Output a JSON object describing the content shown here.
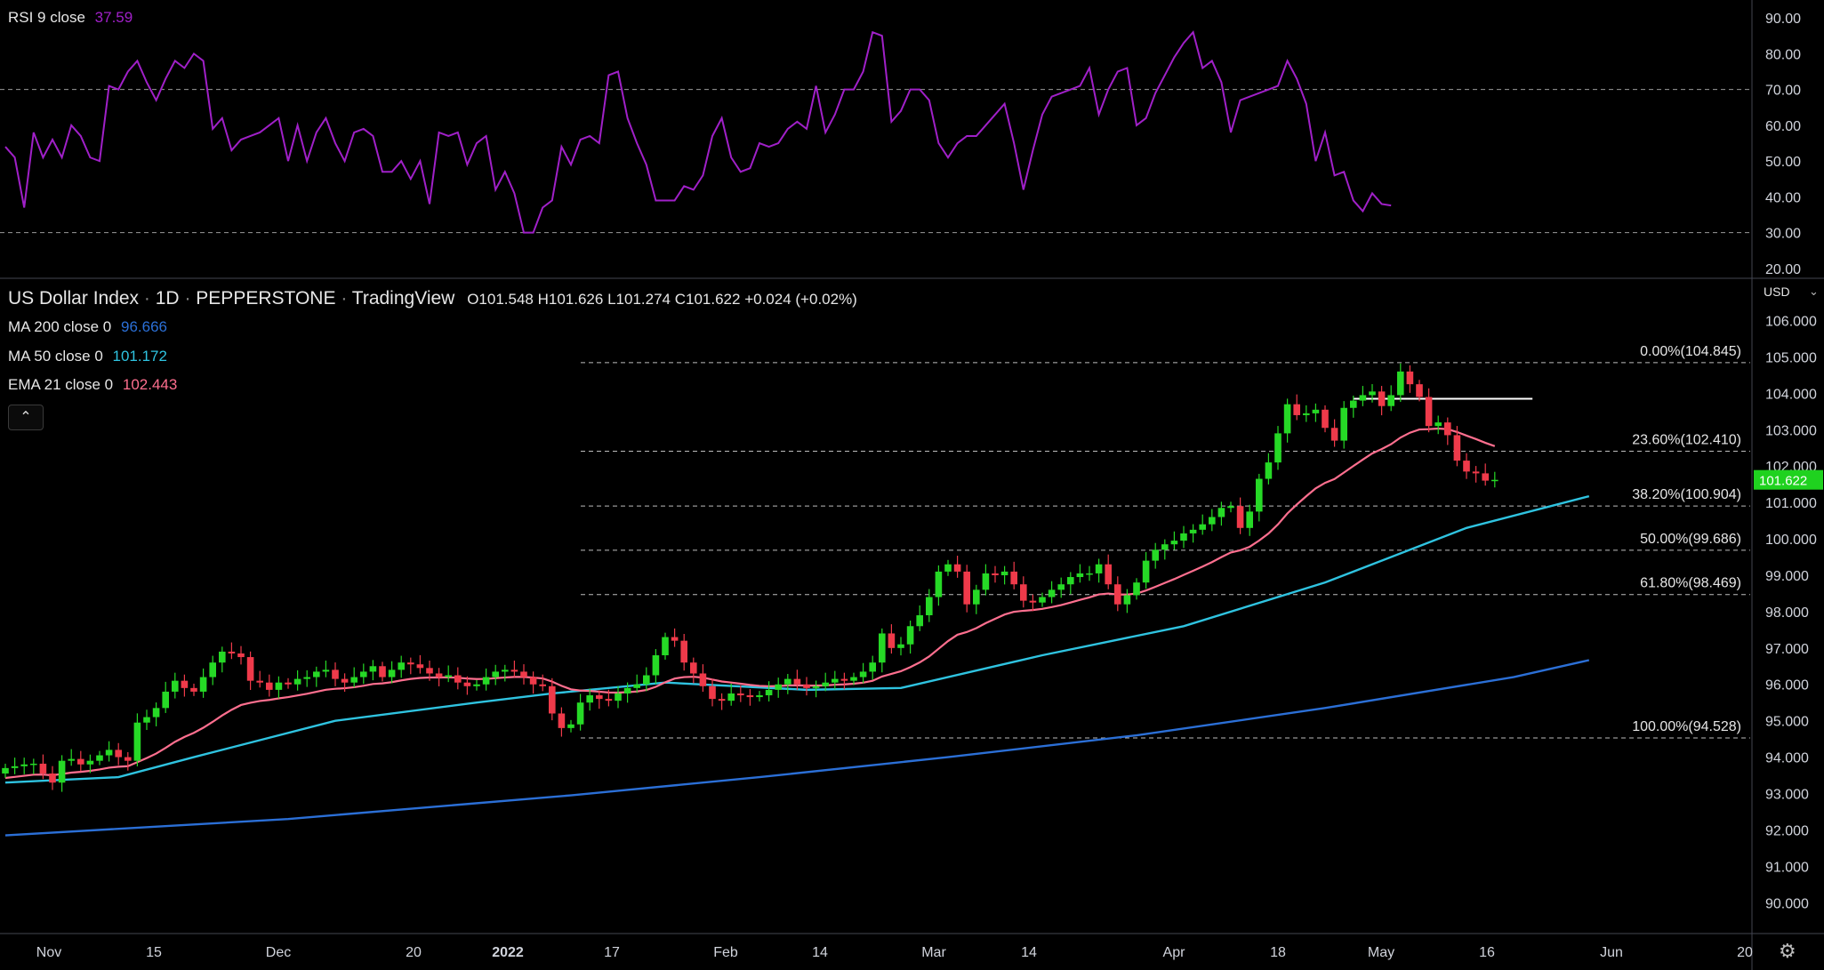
{
  "colors": {
    "background": "#000000",
    "grid_text": "#d1d4dc",
    "axis_line": "#434651",
    "up": "#26d926",
    "down": "#ef3a4a",
    "rsi": "#a020c8",
    "ma200": "#2b6fd6",
    "ma50": "#2fc3e0",
    "ema21": "#ff6f8f",
    "last_price_bg": "#1fd21f"
  },
  "rsi_panel": {
    "title": "RSI 9 close",
    "value": "37.59",
    "axis_ticks": [
      "90.00",
      "80.00",
      "70.00",
      "60.00",
      "50.00",
      "40.00",
      "30.00",
      "20.00"
    ]
  },
  "header": {
    "symbol": "US Dollar Index",
    "sep1": "·",
    "interval": "1D",
    "sep2": "·",
    "exchange": "PEPPERSTONE",
    "sep3": "·",
    "source": "TradingView",
    "o_label": "O",
    "o_value": "101.548",
    "h_label": "H",
    "h_value": "101.626",
    "l_label": "L",
    "l_value": "101.274",
    "c_label": "C",
    "c_value": "101.622",
    "change": "+0.024 (+0.02%)"
  },
  "indicators": {
    "ma200": {
      "label": "MA 200 close 0",
      "value": "96.666"
    },
    "ma50": {
      "label": "MA 50 close 0",
      "value": "101.172"
    },
    "ema21": {
      "label": "EMA 21 close 0",
      "value": "102.443"
    }
  },
  "collapse_icon": "chevron-up-icon",
  "collapse_glyph": "⌃",
  "currency": {
    "label": "USD",
    "caret": "⌄"
  },
  "settings_icon": "gear-icon",
  "settings_glyph": "⚙",
  "price_axis_ticks": [
    "106.000",
    "105.000",
    "104.000",
    "103.000",
    "102.000",
    "101.000",
    "100.000",
    "99.000",
    "98.000",
    "97.000",
    "96.000",
    "95.000",
    "94.000",
    "93.000",
    "92.000",
    "91.000",
    "90.000"
  ],
  "last_price_label": "101.622",
  "time_axis": [
    "Nov",
    "15",
    "Dec",
    "20",
    "2022",
    "17",
    "Feb",
    "14",
    "Mar",
    "14",
    "Apr",
    "18",
    "May",
    "16",
    "Jun",
    "20"
  ],
  "chart_data": {
    "type": "candlestick",
    "fibonacci": [
      {
        "label": "0.00%(104.845)",
        "value": 104.845
      },
      {
        "label": "23.60%(102.410)",
        "value": 102.41
      },
      {
        "label": "38.20%(100.904)",
        "value": 100.904
      },
      {
        "label": "50.00%(99.686)",
        "value": 99.686
      },
      {
        "label": "61.80%(98.469)",
        "value": 98.469
      },
      {
        "label": "100.00%(94.528)",
        "value": 94.528
      }
    ],
    "resistance_level": 103.85,
    "rsi_levels": {
      "upper": 70,
      "lower": 30
    },
    "ylim": [
      89.2,
      106.6
    ],
    "rsi_ylim": [
      17.5,
      95
    ],
    "closes": [
      93.7,
      93.75,
      93.8,
      93.82,
      93.55,
      93.3,
      93.9,
      93.95,
      93.8,
      93.9,
      94.05,
      94.2,
      94.0,
      93.9,
      94.95,
      95.1,
      95.35,
      95.8,
      96.1,
      95.9,
      95.8,
      96.2,
      96.6,
      96.9,
      96.85,
      96.75,
      96.1,
      96.05,
      95.85,
      96.05,
      96.0,
      96.15,
      96.2,
      96.35,
      96.4,
      96.15,
      96.05,
      96.2,
      96.35,
      96.5,
      96.2,
      96.4,
      96.6,
      96.55,
      96.45,
      96.3,
      96.2,
      96.25,
      96.05,
      95.95,
      96.0,
      96.2,
      96.35,
      96.4,
      96.35,
      96.2,
      96.0,
      95.95,
      95.2,
      94.8,
      94.9,
      95.5,
      95.7,
      95.6,
      95.55,
      95.75,
      95.9,
      96.0,
      96.25,
      96.8,
      97.3,
      97.2,
      96.6,
      96.3,
      95.95,
      95.6,
      95.55,
      95.75,
      95.7,
      95.65,
      95.7,
      95.85,
      96.0,
      96.15,
      96.0,
      95.9,
      95.95,
      96.05,
      96.15,
      96.1,
      96.2,
      96.35,
      96.6,
      97.4,
      97.0,
      97.1,
      97.6,
      97.9,
      98.4,
      99.1,
      99.3,
      99.1,
      98.2,
      98.6,
      99.05,
      99.0,
      99.1,
      98.75,
      98.3,
      98.25,
      98.4,
      98.6,
      98.75,
      98.95,
      99.05,
      99.05,
      99.3,
      98.75,
      98.2,
      98.45,
      98.8,
      99.4,
      99.7,
      99.85,
      99.95,
      100.15,
      100.25,
      100.4,
      100.6,
      100.85,
      100.9,
      100.3,
      100.75,
      101.65,
      102.1,
      102.9,
      103.7,
      103.4,
      103.45,
      103.55,
      103.05,
      102.7,
      103.6,
      103.8,
      103.95,
      104.05,
      103.65,
      103.95,
      104.6,
      104.25,
      103.9,
      103.1,
      103.2,
      102.85,
      102.15,
      101.85,
      101.8,
      101.6,
      101.622
    ],
    "rsi": [
      54,
      51,
      37,
      58,
      51,
      56,
      51,
      60,
      57,
      51,
      50,
      71,
      70,
      75,
      78,
      72,
      67,
      73,
      78,
      76,
      80,
      78,
      59,
      62,
      53,
      56,
      57,
      58,
      60,
      62,
      50,
      60,
      50,
      58,
      62,
      55,
      50,
      58,
      59,
      57,
      47,
      47,
      50,
      45,
      50,
      38,
      58,
      57,
      58,
      49,
      55,
      57,
      42,
      47,
      41,
      30,
      30,
      37,
      39,
      54,
      49,
      56,
      57,
      55,
      74,
      75,
      62,
      55,
      49,
      39,
      39,
      39,
      43,
      42,
      46,
      57,
      62,
      51,
      47,
      48,
      55,
      54,
      55,
      59,
      61,
      59,
      71,
      58,
      63,
      70,
      70,
      75,
      86,
      85,
      61,
      64,
      70,
      70,
      67,
      55,
      51,
      55,
      57,
      57,
      60,
      63,
      66,
      55,
      42,
      53,
      63,
      68,
      69,
      70,
      71,
      76,
      63,
      70,
      75,
      76,
      60,
      62,
      69,
      74,
      79,
      83,
      86,
      76,
      78,
      72,
      58,
      67,
      68,
      69,
      70,
      71,
      78,
      73,
      66,
      50,
      58,
      46,
      47,
      39,
      36,
      41,
      38,
      37.59
    ],
    "ma200_points": [
      {
        "x": 0,
        "y": 91.85
      },
      {
        "x": 30,
        "y": 92.3
      },
      {
        "x": 60,
        "y": 92.95
      },
      {
        "x": 80,
        "y": 93.45
      },
      {
        "x": 100,
        "y": 94.0
      },
      {
        "x": 120,
        "y": 94.6
      },
      {
        "x": 140,
        "y": 95.35
      },
      {
        "x": 160,
        "y": 96.2
      },
      {
        "x": 168,
        "y": 96.666
      }
    ],
    "ma50_points": [
      {
        "x": 0,
        "y": 93.3
      },
      {
        "x": 12,
        "y": 93.45
      },
      {
        "x": 20,
        "y": 94.0
      },
      {
        "x": 35,
        "y": 95.0
      },
      {
        "x": 50,
        "y": 95.5
      },
      {
        "x": 58,
        "y": 95.75
      },
      {
        "x": 70,
        "y": 96.05
      },
      {
        "x": 85,
        "y": 95.85
      },
      {
        "x": 95,
        "y": 95.9
      },
      {
        "x": 110,
        "y": 96.8
      },
      {
        "x": 125,
        "y": 97.6
      },
      {
        "x": 140,
        "y": 98.8
      },
      {
        "x": 155,
        "y": 100.3
      },
      {
        "x": 168,
        "y": 101.172
      }
    ]
  }
}
